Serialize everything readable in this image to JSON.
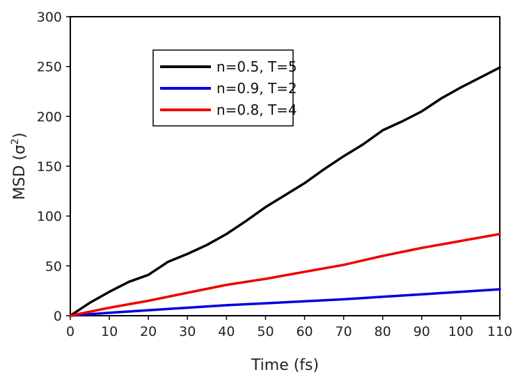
{
  "chart_data": {
    "type": "line",
    "title": "",
    "xlabel": "Time (fs)",
    "ylabel_main": "MSD (σ",
    "ylabel_sup": "2",
    "ylabel_close": ")",
    "xlim": [
      0,
      110
    ],
    "ylim": [
      0,
      300
    ],
    "xticks": [
      0,
      10,
      20,
      30,
      40,
      50,
      60,
      70,
      80,
      90,
      100,
      110
    ],
    "yticks": [
      0,
      50,
      100,
      150,
      200,
      250,
      300
    ],
    "grid": false,
    "legend_position": "top-left",
    "series": [
      {
        "name": "n=0.5, T=5",
        "color": "#000000",
        "x": [
          0,
          5,
          10,
          15,
          20,
          25,
          30,
          35,
          40,
          45,
          50,
          55,
          60,
          65,
          70,
          75,
          80,
          85,
          90,
          95,
          100,
          105,
          110
        ],
        "values": [
          0,
          13,
          24,
          34,
          41,
          54,
          62,
          71,
          82,
          95,
          109,
          121,
          133,
          147,
          160,
          172,
          186,
          195,
          205,
          218,
          229,
          239,
          249
        ]
      },
      {
        "name": "n=0.9, T=2",
        "color": "#0000dd",
        "x": [
          0,
          10,
          20,
          30,
          40,
          50,
          60,
          70,
          80,
          90,
          100,
          110
        ],
        "values": [
          0,
          3,
          5.5,
          8,
          10.5,
          12.5,
          14.5,
          16.5,
          19,
          21.5,
          24,
          26.5
        ]
      },
      {
        "name": "n=0.8, T=4",
        "color": "#ee0000",
        "x": [
          0,
          10,
          20,
          30,
          40,
          50,
          60,
          70,
          80,
          90,
          100,
          110
        ],
        "values": [
          0,
          8,
          15,
          23,
          31,
          37,
          44,
          51,
          60,
          68,
          75,
          82
        ]
      }
    ]
  }
}
